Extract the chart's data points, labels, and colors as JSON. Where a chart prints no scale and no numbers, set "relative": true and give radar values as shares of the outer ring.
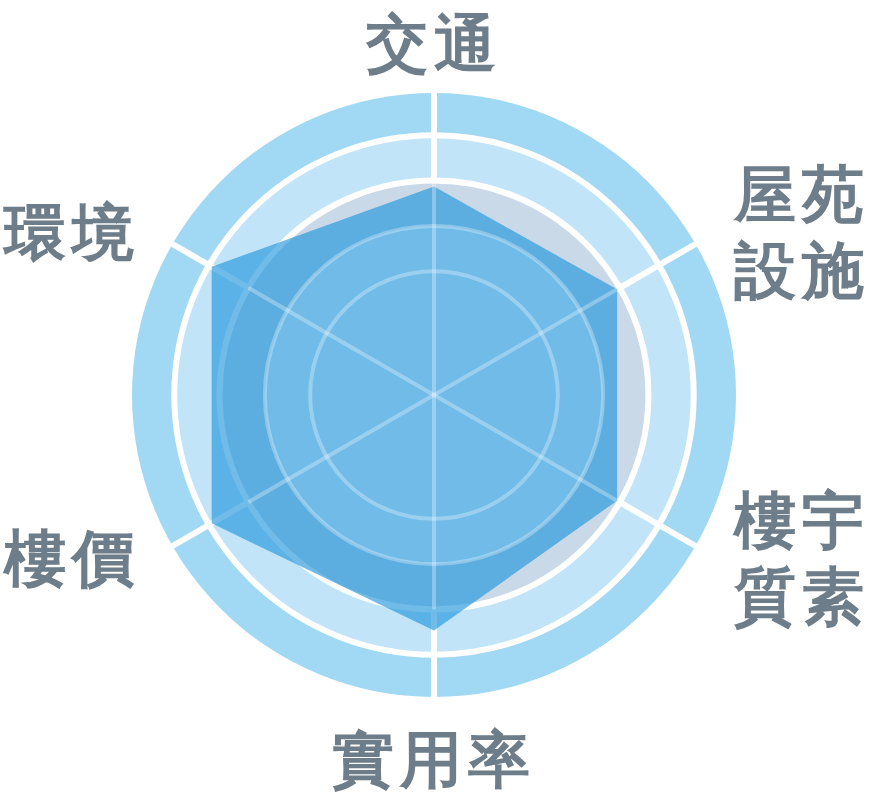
{
  "chart_data": {
    "type": "radar",
    "categories": [
      "交通",
      "屋苑設施",
      "樓宇質素",
      "實用率",
      "樓價",
      "環境"
    ],
    "relative": true,
    "grid": true,
    "series": [
      {
        "color": "#2397dc",
        "values": [
          0.69,
          0.7,
          0.7,
          0.78,
          0.85,
          0.85
        ]
      }
    ]
  }
}
